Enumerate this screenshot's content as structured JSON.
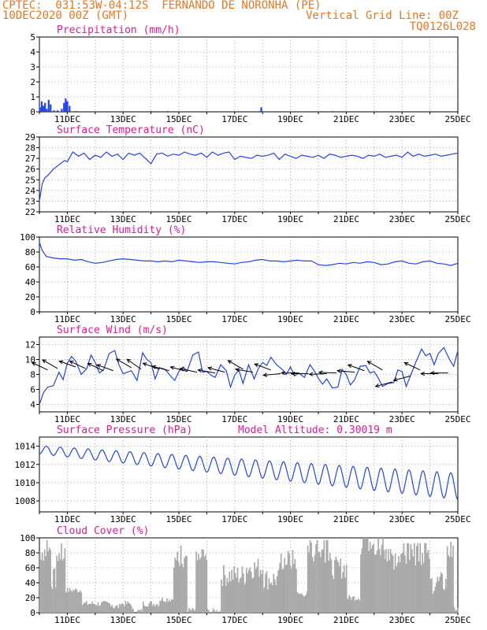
{
  "header": {
    "line1": "CPTEC:  031:53W-04:12S  FERNANDO DE NORONHA (PE)",
    "line2": "10DEC2020 00Z (GMT)",
    "right1": "Vertical Grid Line: 00Z",
    "right2": "TQ0126L028"
  },
  "colors": {
    "header": "#e87722",
    "panel_title": "#e0199a",
    "series": "#2343e6",
    "cloud_fill": "#a9a9a9",
    "wind_arrow": "#000000",
    "grid": "#999999"
  },
  "chart_data": [
    {
      "type": "bar",
      "title": "Precipitation (mm/h)",
      "x_ticks": [
        "11DEC",
        "13DEC",
        "15DEC",
        "17DEC",
        "19DEC",
        "21DEC",
        "23DEC",
        "25DEC"
      ],
      "ylim": [
        0,
        5
      ],
      "y_ticks": [
        "0",
        "1",
        "2",
        "3",
        "4",
        "5"
      ],
      "grid": true,
      "bars": [
        {
          "day": 10.02,
          "value": 0.3
        },
        {
          "day": 10.08,
          "value": 0.7
        },
        {
          "day": 10.14,
          "value": 0.4
        },
        {
          "day": 10.2,
          "value": 0.6
        },
        {
          "day": 10.26,
          "value": 0.2
        },
        {
          "day": 10.33,
          "value": 0.8
        },
        {
          "day": 10.4,
          "value": 0.5
        },
        {
          "day": 10.52,
          "value": 0.1
        },
        {
          "day": 10.65,
          "value": 0.1
        },
        {
          "day": 10.8,
          "value": 0.2
        },
        {
          "day": 10.88,
          "value": 0.6
        },
        {
          "day": 10.94,
          "value": 0.9
        },
        {
          "day": 11.0,
          "value": 0.7
        },
        {
          "day": 11.08,
          "value": 0.4
        },
        {
          "day": 11.3,
          "value": 0.05
        },
        {
          "day": 14.0,
          "value": 0.05
        },
        {
          "day": 14.6,
          "value": 0.05
        },
        {
          "day": 17.9,
          "value": 0.05
        },
        {
          "day": 17.95,
          "value": 0.3
        },
        {
          "day": 20.5,
          "value": 0.05
        }
      ]
    },
    {
      "type": "line",
      "title": "Surface Temperature (nC)",
      "x_ticks": [
        "11DEC",
        "13DEC",
        "15DEC",
        "17DEC",
        "19DEC",
        "21DEC",
        "23DEC",
        "25DEC"
      ],
      "ylim": [
        22,
        29
      ],
      "y_ticks": [
        "22",
        "23",
        "24",
        "25",
        "26",
        "27",
        "28",
        "29"
      ],
      "grid": true,
      "series": [
        {
          "x": [
            10.0,
            10.1,
            10.2,
            10.3,
            10.5,
            10.7,
            10.9,
            11.0,
            11.2,
            11.4,
            11.6,
            11.8,
            12.0,
            12.2,
            12.4,
            12.6,
            12.8,
            13.0,
            13.2,
            13.4,
            13.6,
            13.8,
            14.0,
            14.2,
            14.4,
            14.6,
            14.8,
            15.0,
            15.2,
            15.4,
            15.6,
            15.8,
            16.0,
            16.2,
            16.4,
            16.6,
            16.8,
            17.0,
            17.2,
            17.4,
            17.6,
            17.8,
            18.0,
            18.2,
            18.4,
            18.6,
            18.8,
            19.0,
            19.2,
            19.4,
            19.6,
            19.8,
            20.0,
            20.2,
            20.4,
            20.6,
            20.8,
            21.0,
            21.2,
            21.4,
            21.6,
            21.8,
            22.0,
            22.2,
            22.4,
            22.6,
            22.8,
            23.0,
            23.2,
            23.4,
            23.6,
            23.8,
            24.0,
            24.2,
            24.4,
            24.6,
            24.8,
            25.0
          ],
          "y": [
            23.0,
            24.6,
            25.2,
            25.4,
            26.0,
            26.4,
            26.8,
            26.7,
            27.6,
            27.2,
            27.5,
            26.9,
            27.3,
            27.1,
            27.6,
            27.2,
            27.4,
            26.9,
            27.5,
            27.3,
            27.5,
            27.0,
            26.5,
            27.4,
            27.5,
            27.2,
            27.4,
            27.3,
            27.6,
            27.4,
            27.3,
            27.5,
            27.1,
            27.6,
            27.3,
            27.5,
            27.6,
            26.9,
            27.2,
            27.1,
            27.0,
            27.3,
            27.2,
            27.3,
            27.5,
            26.9,
            27.4,
            27.2,
            27.0,
            27.3,
            27.2,
            27.1,
            27.3,
            27.0,
            27.4,
            27.3,
            27.1,
            27.2,
            27.3,
            27.2,
            27.0,
            27.3,
            27.2,
            27.4,
            27.1,
            27.2,
            27.3,
            27.1,
            27.6,
            27.2,
            27.4,
            27.2,
            27.3,
            27.4,
            27.2,
            27.3,
            27.4,
            27.5
          ]
        }
      ]
    },
    {
      "type": "line",
      "title": "Relative Humidity (%)",
      "x_ticks": [
        "11DEC",
        "13DEC",
        "15DEC",
        "17DEC",
        "19DEC",
        "21DEC",
        "23DEC",
        "25DEC"
      ],
      "ylim": [
        0,
        100
      ],
      "y_ticks": [
        "0",
        "20",
        "40",
        "60",
        "80",
        "100"
      ],
      "grid": true,
      "series": [
        {
          "x": [
            10.0,
            10.1,
            10.25,
            10.5,
            10.75,
            11.0,
            11.25,
            11.5,
            11.75,
            12.0,
            12.25,
            12.5,
            12.75,
            13.0,
            13.25,
            13.5,
            13.75,
            14.0,
            14.25,
            14.5,
            14.75,
            15.0,
            15.25,
            15.5,
            15.75,
            16.0,
            16.25,
            16.5,
            16.75,
            17.0,
            17.25,
            17.5,
            17.75,
            18.0,
            18.25,
            18.5,
            18.75,
            19.0,
            19.25,
            19.5,
            19.75,
            20.0,
            20.25,
            20.5,
            20.75,
            21.0,
            21.25,
            21.5,
            21.75,
            22.0,
            22.25,
            22.5,
            22.75,
            23.0,
            23.25,
            23.5,
            23.75,
            24.0,
            24.25,
            24.5,
            24.75,
            25.0
          ],
          "y": [
            93,
            82,
            74,
            72,
            71,
            71,
            69,
            70,
            67,
            65,
            66,
            68,
            70,
            71,
            70,
            69,
            68,
            68,
            67,
            68,
            67,
            69,
            68,
            67,
            66,
            67,
            67,
            66,
            65,
            64,
            66,
            67,
            69,
            70,
            68,
            68,
            67,
            68,
            69,
            68,
            68,
            63,
            62,
            63,
            65,
            64,
            66,
            65,
            67,
            66,
            63,
            64,
            67,
            68,
            65,
            64,
            67,
            68,
            65,
            64,
            62,
            65
          ]
        }
      ]
    },
    {
      "type": "line",
      "title": "Surface Wind (m/s)",
      "x_ticks": [
        "11DEC",
        "13DEC",
        "15DEC",
        "17DEC",
        "19DEC",
        "21DEC",
        "23DEC",
        "25DEC"
      ],
      "ylim": [
        3,
        13
      ],
      "y_ticks": [
        "4",
        "6",
        "8",
        "10",
        "12"
      ],
      "grid": true,
      "series": [
        {
          "x": [
            10.0,
            10.15,
            10.3,
            10.5,
            10.7,
            10.85,
            11.0,
            11.15,
            11.3,
            11.5,
            11.7,
            11.85,
            12.0,
            12.15,
            12.3,
            12.5,
            12.7,
            12.85,
            13.0,
            13.15,
            13.3,
            13.5,
            13.7,
            13.85,
            14.0,
            14.15,
            14.3,
            14.5,
            14.7,
            14.85,
            15.0,
            15.15,
            15.3,
            15.5,
            15.7,
            15.85,
            16.0,
            16.15,
            16.3,
            16.5,
            16.7,
            16.85,
            17.0,
            17.15,
            17.3,
            17.5,
            17.7,
            17.85,
            18.0,
            18.15,
            18.3,
            18.5,
            18.7,
            18.85,
            19.0,
            19.15,
            19.3,
            19.5,
            19.7,
            19.85,
            20.0,
            20.15,
            20.3,
            20.5,
            20.7,
            20.85,
            21.0,
            21.15,
            21.3,
            21.5,
            21.7,
            21.85,
            22.0,
            22.15,
            22.3,
            22.5,
            22.7,
            22.85,
            23.0,
            23.15,
            23.3,
            23.5,
            23.7,
            23.85,
            24.0,
            24.15,
            24.3,
            24.5,
            24.7,
            24.85,
            25.0
          ],
          "y": [
            4.0,
            5.6,
            6.3,
            6.5,
            8.3,
            7.3,
            9.5,
            10.4,
            9.8,
            8.0,
            8.8,
            10.6,
            9.6,
            8.2,
            8.6,
            10.8,
            11.2,
            9.3,
            8.1,
            8.3,
            8.5,
            7.2,
            10.9,
            10.0,
            9.6,
            7.4,
            8.9,
            8.7,
            7.8,
            7.2,
            8.4,
            9.0,
            8.5,
            10.6,
            11.0,
            8.3,
            8.4,
            7.9,
            7.6,
            9.3,
            8.5,
            6.3,
            7.9,
            8.6,
            6.8,
            9.3,
            7.4,
            8.8,
            9.6,
            9.2,
            10.3,
            9.3,
            8.7,
            8.0,
            9.0,
            7.8,
            8.2,
            7.6,
            9.3,
            8.5,
            7.5,
            6.7,
            7.4,
            6.2,
            6.3,
            8.7,
            8.0,
            6.6,
            7.3,
            9.1,
            9.2,
            8.2,
            8.4,
            7.5,
            6.4,
            6.8,
            6.9,
            8.6,
            8.4,
            6.4,
            7.8,
            9.7,
            11.4,
            10.5,
            10.8,
            9.3,
            10.8,
            11.6,
            10.0,
            9.1,
            11.2
          ]
        }
      ],
      "wind_arrows": [
        {
          "day": 10.3,
          "speed": 8.6,
          "dir_deg": 155
        },
        {
          "day": 10.65,
          "speed": 8.8,
          "dir_deg": 150
        },
        {
          "day": 11.3,
          "speed": 9.0,
          "dir_deg": 160
        },
        {
          "day": 11.65,
          "speed": 8.8,
          "dir_deg": 155
        },
        {
          "day": 12.3,
          "speed": 8.5,
          "dir_deg": 155
        },
        {
          "day": 12.65,
          "speed": 8.5,
          "dir_deg": 160
        },
        {
          "day": 13.3,
          "speed": 8.9,
          "dir_deg": 150
        },
        {
          "day": 13.65,
          "speed": 8.7,
          "dir_deg": 145
        },
        {
          "day": 14.3,
          "speed": 8.7,
          "dir_deg": 160
        },
        {
          "day": 14.65,
          "speed": 8.5,
          "dir_deg": 165
        },
        {
          "day": 15.3,
          "speed": 8.4,
          "dir_deg": 165
        },
        {
          "day": 15.65,
          "speed": 8.3,
          "dir_deg": 168
        },
        {
          "day": 16.3,
          "speed": 8.2,
          "dir_deg": 170
        },
        {
          "day": 16.65,
          "speed": 8.3,
          "dir_deg": 165
        },
        {
          "day": 17.3,
          "speed": 8.7,
          "dir_deg": 150
        },
        {
          "day": 17.65,
          "speed": 8.3,
          "dir_deg": 170
        },
        {
          "day": 18.3,
          "speed": 8.6,
          "dir_deg": 160
        },
        {
          "day": 18.65,
          "speed": 8.1,
          "dir_deg": 185
        },
        {
          "day": 19.3,
          "speed": 8.2,
          "dir_deg": 180
        },
        {
          "day": 19.65,
          "speed": 8.1,
          "dir_deg": 180
        },
        {
          "day": 20.3,
          "speed": 8.1,
          "dir_deg": 182
        },
        {
          "day": 20.65,
          "speed": 8.2,
          "dir_deg": 178
        },
        {
          "day": 21.3,
          "speed": 8.3,
          "dir_deg": 175
        },
        {
          "day": 21.65,
          "speed": 8.5,
          "dir_deg": 160
        },
        {
          "day": 22.3,
          "speed": 8.6,
          "dir_deg": 150
        },
        {
          "day": 22.65,
          "speed": 7.0,
          "dir_deg": 195
        },
        {
          "day": 23.3,
          "speed": 7.8,
          "dir_deg": 195
        },
        {
          "day": 23.65,
          "speed": 8.6,
          "dir_deg": 155
        },
        {
          "day": 24.3,
          "speed": 8.1,
          "dir_deg": 180
        },
        {
          "day": 24.65,
          "speed": 8.2,
          "dir_deg": 180
        }
      ]
    },
    {
      "type": "line",
      "title": "Surface Pressure (hPa)",
      "annotation": "Model Altitude: 0.30019 m",
      "x_ticks": [
        "11DEC",
        "13DEC",
        "15DEC",
        "17DEC",
        "19DEC",
        "21DEC",
        "23DEC",
        "25DEC"
      ],
      "ylim": [
        1006.8,
        1015.0
      ],
      "y_ticks": [
        "1008",
        "1010",
        "1012",
        "1014"
      ],
      "grid": true,
      "series": [
        {
          "name_hidden": "pressure",
          "params": {
            "start_day": 10.0,
            "end_day": 25.0,
            "base_start": 1013.6,
            "base_end": 1009.6,
            "amp_start": 0.5,
            "amp_end": 1.6,
            "cycles_per_day": 2
          }
        }
      ]
    },
    {
      "type": "bar",
      "title": "Cloud Cover (%)",
      "x_ticks": [
        "11DEC",
        "13DEC",
        "15DEC",
        "17DEC",
        "19DEC",
        "21DEC",
        "23DEC",
        "25DEC"
      ],
      "ylim": [
        0,
        100
      ],
      "y_ticks": [
        "0",
        "20",
        "40",
        "60",
        "80",
        "100"
      ],
      "grid": true,
      "segments": [
        {
          "start": 10.0,
          "end": 10.4,
          "level": 82
        },
        {
          "start": 10.4,
          "end": 10.6,
          "level": 45
        },
        {
          "start": 10.6,
          "end": 10.9,
          "level": 78
        },
        {
          "start": 10.9,
          "end": 11.5,
          "level": 30
        },
        {
          "start": 11.5,
          "end": 12.6,
          "level": 12
        },
        {
          "start": 12.6,
          "end": 12.9,
          "level": 8
        },
        {
          "start": 12.9,
          "end": 13.3,
          "level": 12
        },
        {
          "start": 13.3,
          "end": 13.7,
          "level": 2
        },
        {
          "start": 13.7,
          "end": 14.3,
          "level": 12
        },
        {
          "start": 14.3,
          "end": 14.8,
          "level": 18
        },
        {
          "start": 14.8,
          "end": 15.3,
          "level": 75
        },
        {
          "start": 15.3,
          "end": 15.6,
          "level": 3
        },
        {
          "start": 15.6,
          "end": 16.0,
          "level": 70
        },
        {
          "start": 16.0,
          "end": 16.5,
          "level": 2
        },
        {
          "start": 16.5,
          "end": 17.4,
          "level": 50
        },
        {
          "start": 17.4,
          "end": 18.0,
          "level": 60
        },
        {
          "start": 18.0,
          "end": 18.6,
          "level": 45
        },
        {
          "start": 18.6,
          "end": 19.2,
          "level": 70
        },
        {
          "start": 19.2,
          "end": 19.6,
          "level": 25
        },
        {
          "start": 19.6,
          "end": 20.4,
          "level": 82
        },
        {
          "start": 20.4,
          "end": 21.0,
          "level": 60
        },
        {
          "start": 21.0,
          "end": 21.5,
          "level": 20
        },
        {
          "start": 21.5,
          "end": 22.4,
          "level": 85
        },
        {
          "start": 22.4,
          "end": 23.0,
          "level": 70
        },
        {
          "start": 23.0,
          "end": 24.0,
          "level": 78
        },
        {
          "start": 24.0,
          "end": 24.6,
          "level": 40
        },
        {
          "start": 24.6,
          "end": 24.85,
          "level": 80
        },
        {
          "start": 24.85,
          "end": 25.0,
          "level": 5
        }
      ]
    }
  ]
}
